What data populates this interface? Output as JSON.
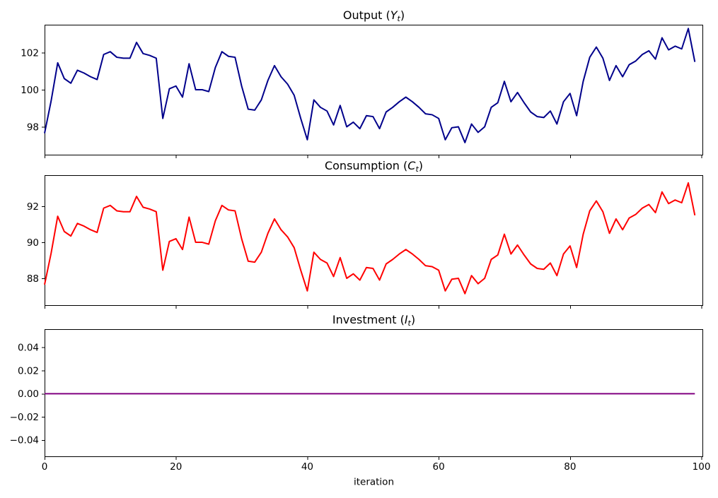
{
  "figure": {
    "xlabel": "iteration",
    "xticks": [
      0,
      20,
      40,
      60,
      80,
      100
    ],
    "xtick_labels": [
      "0",
      "20",
      "40",
      "60",
      "80",
      "100"
    ],
    "background_color": "#ffffff",
    "spine_color": "#000000",
    "text_color": "#000000"
  },
  "chart_data": [
    {
      "id": "output",
      "type": "line",
      "title": "Output (Y_t)",
      "title_parts": {
        "prefix": "Output (",
        "math_var": "Y",
        "math_sub": "t",
        "suffix": ")"
      },
      "series_name": "Y_t",
      "line_color": "#00008B",
      "x": {
        "start": 0,
        "end": 99,
        "step": 1
      },
      "ylim": [
        96.457,
        103.505
      ],
      "yticks": [
        98,
        100,
        102
      ],
      "ytick_labels": [
        "98",
        "100",
        "102"
      ],
      "grid": false,
      "values": [
        97.65,
        99.4,
        101.45,
        100.6,
        100.35,
        101.05,
        100.9,
        100.7,
        100.55,
        101.9,
        102.05,
        101.75,
        101.7,
        101.7,
        102.55,
        101.95,
        101.85,
        101.7,
        98.45,
        100.05,
        100.2,
        99.6,
        101.4,
        100.0,
        100.0,
        99.9,
        101.2,
        102.05,
        101.8,
        101.75,
        100.2,
        98.95,
        98.9,
        99.45,
        100.5,
        101.3,
        100.7,
        100.3,
        99.7,
        98.45,
        97.3,
        99.45,
        99.05,
        98.85,
        98.1,
        99.15,
        98.0,
        98.25,
        97.9,
        98.6,
        98.55,
        97.9,
        98.8,
        99.05,
        99.35,
        99.6,
        99.35,
        99.05,
        98.7,
        98.65,
        98.45,
        97.3,
        97.95,
        98.0,
        97.15,
        98.15,
        97.7,
        98.0,
        99.05,
        99.3,
        100.45,
        99.35,
        99.85,
        99.3,
        98.8,
        98.55,
        98.5,
        98.85,
        98.15,
        99.35,
        99.8,
        98.6,
        100.45,
        101.75,
        102.3,
        101.7,
        100.5,
        101.3,
        100.7,
        101.35,
        101.55,
        101.9,
        102.1,
        101.65,
        102.8,
        102.15,
        102.35,
        102.2,
        103.3,
        101.5
      ]
    },
    {
      "id": "consumption",
      "type": "line",
      "title": "Consumption (C_t)",
      "title_parts": {
        "prefix": "Consumption (",
        "math_var": "C",
        "math_sub": "t",
        "suffix": ")"
      },
      "series_name": "C_t",
      "line_color": "#FF0000",
      "x": {
        "start": 0,
        "end": 99,
        "step": 1
      },
      "ylim": [
        86.47,
        93.73
      ],
      "yticks": [
        88,
        90,
        92
      ],
      "ytick_labels": [
        "88",
        "90",
        "92"
      ],
      "grid": false,
      "values": [
        87.65,
        89.4,
        91.45,
        90.6,
        90.35,
        91.05,
        90.9,
        90.7,
        90.55,
        91.9,
        92.05,
        91.75,
        91.7,
        91.7,
        92.55,
        91.95,
        91.85,
        91.7,
        88.45,
        90.05,
        90.2,
        89.6,
        91.4,
        90.0,
        90.0,
        89.9,
        91.2,
        92.05,
        91.8,
        91.75,
        90.2,
        88.95,
        88.9,
        89.45,
        90.5,
        91.3,
        90.7,
        90.3,
        89.7,
        88.45,
        87.3,
        89.45,
        89.05,
        88.85,
        88.1,
        89.15,
        88.0,
        88.25,
        87.9,
        88.6,
        88.55,
        87.9,
        88.8,
        89.05,
        89.35,
        89.6,
        89.35,
        89.05,
        88.7,
        88.65,
        88.45,
        87.3,
        87.95,
        88.0,
        87.15,
        88.15,
        87.7,
        88.0,
        89.05,
        89.3,
        90.45,
        89.35,
        89.85,
        89.3,
        88.8,
        88.55,
        88.5,
        88.85,
        88.15,
        89.35,
        89.8,
        88.6,
        90.45,
        91.75,
        92.3,
        91.7,
        90.5,
        91.3,
        90.7,
        91.35,
        91.55,
        91.9,
        92.1,
        91.65,
        92.8,
        92.15,
        92.35,
        92.2,
        93.3,
        91.5
      ]
    },
    {
      "id": "investment",
      "type": "line",
      "title": "Investment (I_t)",
      "title_parts": {
        "prefix": "Investment (",
        "math_var": "I",
        "math_sub": "t",
        "suffix": ")"
      },
      "series_name": "I_t",
      "line_color": "#800080",
      "x": {
        "start": 0,
        "end": 99,
        "step": 1
      },
      "ylim": [
        -0.0547,
        0.0557
      ],
      "yticks": [
        0.04,
        0.02,
        0.0,
        -0.02,
        -0.04
      ],
      "ytick_labels": [
        "0.04",
        "0.02",
        "0.00",
        "−0.02",
        "−0.04"
      ],
      "grid": false,
      "constant_value": 0.0,
      "n_points": 100
    }
  ]
}
